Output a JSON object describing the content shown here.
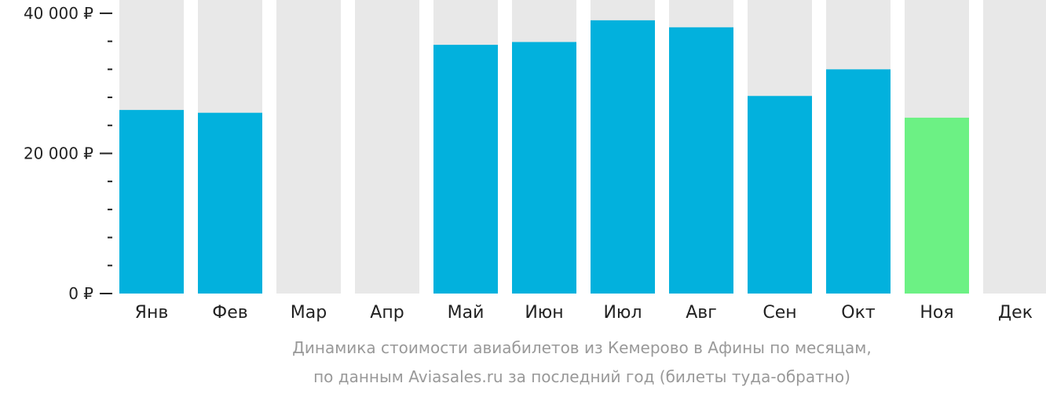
{
  "chart_data": {
    "type": "bar",
    "categories": [
      "Янв",
      "Фев",
      "Мар",
      "Апр",
      "Май",
      "Июн",
      "Июл",
      "Авг",
      "Сен",
      "Окт",
      "Ноя",
      "Дек"
    ],
    "values": [
      26200,
      25800,
      null,
      null,
      35500,
      35900,
      39000,
      38000,
      28200,
      32000,
      25100,
      null
    ],
    "ylim": [
      0,
      41000
    ],
    "yticks": [
      0,
      20000,
      40000
    ],
    "ytick_labels": [
      "0 ₽",
      "20 000 ₽",
      "40 000 ₽"
    ],
    "minor_tick_step": 4000,
    "highlight_index": 10,
    "colors": {
      "bar": "#02b1dd",
      "highlight": "#6cf184",
      "background_bar": "#e8e8e8",
      "axis": "#222222",
      "caption": "#999999"
    },
    "caption_line1": "Динамика стоимости авиабилетов из Кемерово в Афины по месяцам,",
    "caption_line2": "по данным Aviasales.ru за последний год (билеты туда-обратно)"
  }
}
